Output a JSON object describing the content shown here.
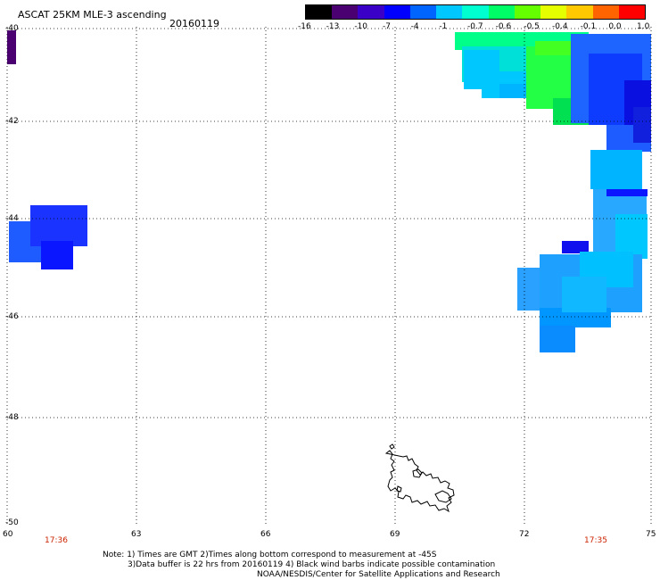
{
  "header": {
    "title": "ASCAT 25KM MLE-3 ascending",
    "date": "20160119"
  },
  "colorbar": {
    "labels": [
      "-16",
      "-13",
      "-10",
      "-7",
      "-4",
      "-1",
      "-0.7",
      "-0.6",
      "-0.5",
      "-0.4",
      "-0.1",
      "0.0",
      "1.0"
    ],
    "colors": [
      "#000000",
      "#4a0070",
      "#3a00c8",
      "#0000ff",
      "#0064ff",
      "#00c8ff",
      "#00ffd0",
      "#00ff66",
      "#66ff00",
      "#e6ff00",
      "#ffc800",
      "#ff6400",
      "#ff0000"
    ]
  },
  "map": {
    "lon_labels": [
      "60",
      "63",
      "66",
      "69",
      "72",
      "75"
    ],
    "lat_labels": [
      "-40",
      "-42",
      "-44",
      "-46",
      "-48",
      "-50"
    ],
    "times": {
      "left": "17:36",
      "right": "17:35"
    }
  },
  "notes": {
    "line1": "Note: 1) Times are GMT 2)Times along bottom correspond to measurement at -45S",
    "line2": "3)Data buffer is 22 hrs from 20160119 4) Black wind barbs indicate possible contamination",
    "line3": "NOAA/NESDIS/Center for Satellite Applications and Research"
  }
}
